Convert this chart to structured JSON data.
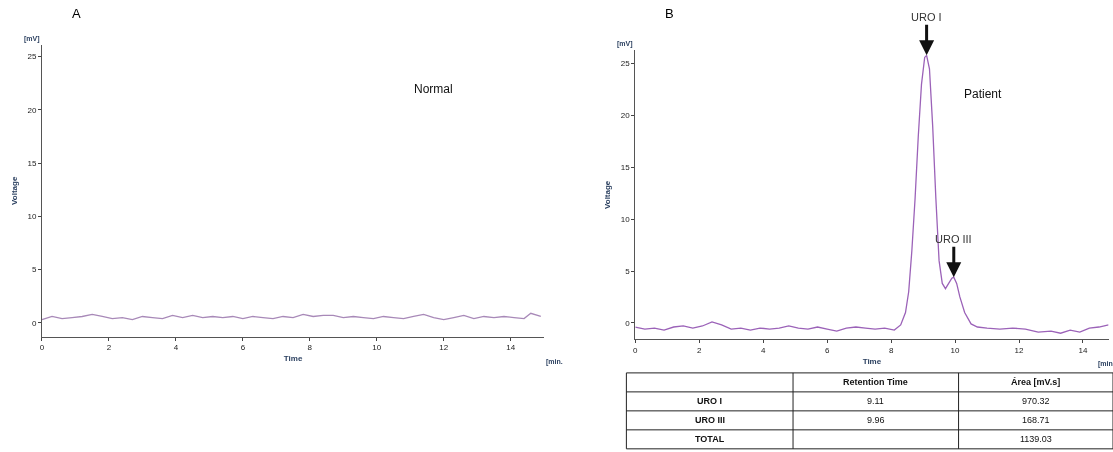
{
  "chart_data": [
    {
      "type": "line",
      "title": "A",
      "xlabel": "Time",
      "ylabel": "Voltage",
      "color": "#a889b8",
      "xlim": [
        0,
        15
      ],
      "ylim": [
        -1.3,
        26.1
      ],
      "xticks": [
        0,
        2,
        4,
        6,
        8,
        10,
        12,
        14
      ],
      "yticks": [
        0,
        5,
        10,
        15,
        20,
        25
      ],
      "x": [
        0,
        0.3,
        0.6,
        0.9,
        1.2,
        1.5,
        1.8,
        2.1,
        2.4,
        2.7,
        3.0,
        3.3,
        3.6,
        3.9,
        4.2,
        4.5,
        4.8,
        5.1,
        5.4,
        5.7,
        6.0,
        6.3,
        6.6,
        6.9,
        7.2,
        7.5,
        7.8,
        8.1,
        8.4,
        8.7,
        9.0,
        9.3,
        9.6,
        9.9,
        10.2,
        10.5,
        10.8,
        11.1,
        11.4,
        11.7,
        12.0,
        12.3,
        12.6,
        12.9,
        13.2,
        13.5,
        13.8,
        14.1,
        14.4,
        14.6,
        14.9
      ],
      "values": [
        0.3,
        0.6,
        0.4,
        0.5,
        0.6,
        0.8,
        0.6,
        0.4,
        0.5,
        0.3,
        0.6,
        0.5,
        0.4,
        0.7,
        0.5,
        0.7,
        0.5,
        0.6,
        0.5,
        0.6,
        0.4,
        0.6,
        0.5,
        0.4,
        0.6,
        0.5,
        0.8,
        0.6,
        0.7,
        0.7,
        0.5,
        0.6,
        0.5,
        0.4,
        0.6,
        0.5,
        0.4,
        0.6,
        0.8,
        0.5,
        0.3,
        0.5,
        0.7,
        0.4,
        0.6,
        0.5,
        0.6,
        0.5,
        0.4,
        0.9,
        0.6
      ],
      "annotations": [
        "Normal",
        "[mV]",
        "[min."
      ]
    },
    {
      "type": "line",
      "title": "B",
      "xlabel": "Time",
      "ylabel": "Voltage",
      "color": "#9b62b8",
      "xlim": [
        0,
        14.8
      ],
      "ylim": [
        -1.6,
        26.3
      ],
      "xticks": [
        0,
        2,
        4,
        6,
        8,
        10,
        12,
        14
      ],
      "yticks": [
        0,
        5,
        10,
        15,
        20,
        25
      ],
      "x": [
        0,
        0.3,
        0.6,
        0.9,
        1.2,
        1.5,
        1.8,
        2.1,
        2.4,
        2.7,
        3.0,
        3.3,
        3.6,
        3.9,
        4.2,
        4.5,
        4.8,
        5.1,
        5.4,
        5.7,
        6.0,
        6.3,
        6.6,
        6.9,
        7.2,
        7.5,
        7.8,
        8.1,
        8.3,
        8.45,
        8.55,
        8.65,
        8.75,
        8.85,
        8.95,
        9.05,
        9.11,
        9.2,
        9.3,
        9.4,
        9.5,
        9.6,
        9.7,
        9.8,
        9.9,
        9.96,
        10.05,
        10.15,
        10.3,
        10.5,
        10.7,
        11.0,
        11.4,
        11.8,
        12.2,
        12.6,
        13.0,
        13.3,
        13.6,
        13.9,
        14.2,
        14.5,
        14.8
      ],
      "values": [
        -0.4,
        -0.6,
        -0.5,
        -0.7,
        -0.4,
        -0.3,
        -0.5,
        -0.3,
        0.1,
        -0.2,
        -0.6,
        -0.5,
        -0.7,
        -0.5,
        -0.6,
        -0.5,
        -0.3,
        -0.5,
        -0.6,
        -0.4,
        -0.6,
        -0.8,
        -0.5,
        -0.4,
        -0.5,
        -0.6,
        -0.5,
        -0.7,
        -0.2,
        1.0,
        3.0,
        7.0,
        12.0,
        18.0,
        23.0,
        25.6,
        25.8,
        24.5,
        19.0,
        12.0,
        6.0,
        3.8,
        3.3,
        3.8,
        4.3,
        4.4,
        3.8,
        2.5,
        1.0,
        -0.1,
        -0.4,
        -0.5,
        -0.6,
        -0.5,
        -0.6,
        -0.9,
        -0.8,
        -1.0,
        -0.7,
        -0.9,
        -0.5,
        -0.4,
        -0.2
      ],
      "annotations": [
        "Patient",
        "[mV]",
        "[min",
        {
          "text": "URO I",
          "x": 9.11,
          "y": 25.8
        },
        {
          "text": "URO III",
          "x": 9.96,
          "y": 4.4
        }
      ]
    },
    {
      "type": "other",
      "annotations": [
        "Retention Time",
        "Área [mV.s]",
        "URO I",
        "9.11",
        "970.32",
        "URO III",
        "9.96",
        "168.71",
        "TOTAL",
        "1139.03"
      ]
    }
  ]
}
